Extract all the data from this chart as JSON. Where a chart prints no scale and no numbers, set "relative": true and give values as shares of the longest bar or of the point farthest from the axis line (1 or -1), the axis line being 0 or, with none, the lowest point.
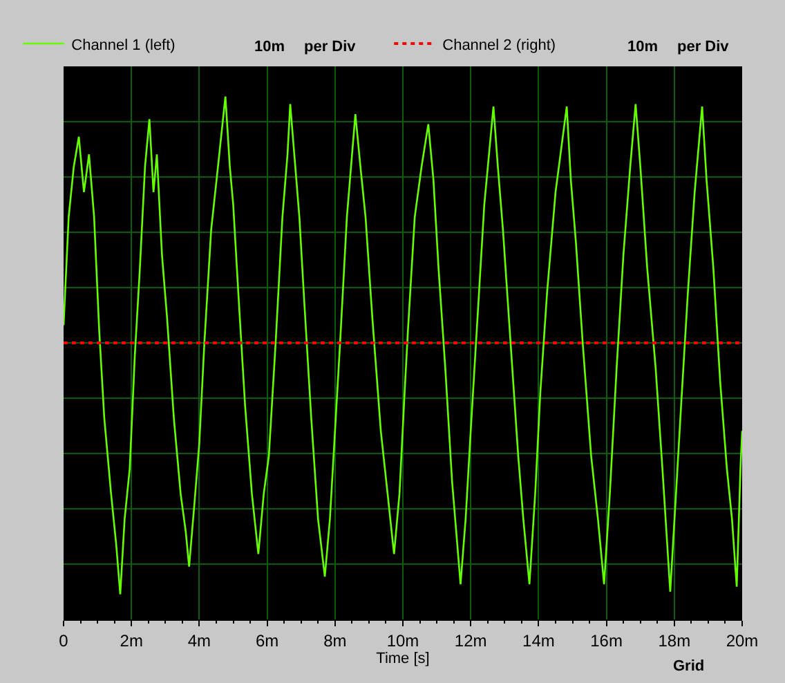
{
  "chart_data": {
    "type": "line",
    "relative": true,
    "xlabel": "Time [s]",
    "xlim": [
      0,
      20
    ],
    "xticks": [
      {
        "value": 0,
        "label": "0"
      },
      {
        "value": 2,
        "label": "2m"
      },
      {
        "value": 4,
        "label": "4m"
      },
      {
        "value": 6,
        "label": "6m"
      },
      {
        "value": 8,
        "label": "8m"
      },
      {
        "value": 10,
        "label": "10m"
      },
      {
        "value": 12,
        "label": "12m"
      },
      {
        "value": 14,
        "label": "14m"
      },
      {
        "value": 16,
        "label": "16m"
      },
      {
        "value": 18,
        "label": "18m"
      },
      {
        "value": 20,
        "label": "20m"
      }
    ],
    "grid": true,
    "legend": "top",
    "marker": "none",
    "annotations": [
      "10m",
      "per Div",
      "10m",
      "per Div",
      "Grid"
    ],
    "series": [
      {
        "name": "Channel 1 (left)",
        "color": "#66ff00",
        "line_style": "solid",
        "x": [
          0,
          0.15,
          0.3,
          0.45,
          0.6,
          0.75,
          0.9,
          1.05,
          1.2,
          1.4,
          1.55,
          1.67,
          1.8,
          1.95,
          2.1,
          2.25,
          2.4,
          2.53,
          2.65,
          2.75,
          2.9,
          3.05,
          3.25,
          3.45,
          3.6,
          3.7,
          3.85,
          4.0,
          4.15,
          4.35,
          4.55,
          4.77,
          4.9,
          5.0,
          5.15,
          5.35,
          5.55,
          5.74,
          5.9,
          6.05,
          6.25,
          6.45,
          6.6,
          6.68,
          6.8,
          6.95,
          7.1,
          7.3,
          7.5,
          7.7,
          7.85,
          8.0,
          8.15,
          8.35,
          8.6,
          8.75,
          8.9,
          9.1,
          9.35,
          9.55,
          9.74,
          9.9,
          10.05,
          10.15,
          10.35,
          10.55,
          10.75,
          10.9,
          11.05,
          11.25,
          11.45,
          11.7,
          11.85,
          12.0,
          12.2,
          12.4,
          12.67,
          12.8,
          12.95,
          13.15,
          13.4,
          13.55,
          13.73,
          13.9,
          14.05,
          14.25,
          14.5,
          14.83,
          14.95,
          15.1,
          15.3,
          15.55,
          15.75,
          15.93,
          16.1,
          16.3,
          16.5,
          16.7,
          16.86,
          17.0,
          17.2,
          17.45,
          17.65,
          17.88,
          18.05,
          18.2,
          18.4,
          18.6,
          18.82,
          18.95,
          19.15,
          19.35,
          19.55,
          19.7,
          19.84,
          19.95,
          20
        ],
        "values": [
          0.07,
          0.5,
          0.7,
          0.82,
          0.6,
          0.75,
          0.5,
          0.05,
          -0.3,
          -0.6,
          -0.8,
          -1,
          -0.7,
          -0.5,
          -0.05,
          0.3,
          0.7,
          0.89,
          0.6,
          0.75,
          0.35,
          0.1,
          -0.3,
          -0.6,
          -0.75,
          -0.89,
          -0.65,
          -0.4,
          0.0,
          0.45,
          0.7,
          0.98,
          0.7,
          0.55,
          0.2,
          -0.25,
          -0.6,
          -0.84,
          -0.6,
          -0.45,
          0.0,
          0.5,
          0.75,
          0.95,
          0.75,
          0.5,
          0.15,
          -0.3,
          -0.7,
          -0.93,
          -0.7,
          -0.35,
          0.0,
          0.5,
          0.91,
          0.7,
          0.5,
          0.1,
          -0.35,
          -0.6,
          -0.84,
          -0.6,
          -0.2,
          0.05,
          0.5,
          0.7,
          0.87,
          0.65,
          0.3,
          -0.1,
          -0.55,
          -0.96,
          -0.7,
          -0.35,
          0.1,
          0.55,
          0.94,
          0.7,
          0.45,
          0.05,
          -0.45,
          -0.7,
          -0.96,
          -0.6,
          -0.2,
          0.2,
          0.6,
          0.94,
          0.65,
          0.4,
          0.0,
          -0.45,
          -0.7,
          -0.96,
          -0.6,
          -0.1,
          0.35,
          0.7,
          0.95,
          0.7,
          0.3,
          -0.1,
          -0.5,
          -0.99,
          -0.6,
          -0.25,
          0.2,
          0.6,
          0.94,
          0.65,
          0.3,
          -0.15,
          -0.5,
          -0.7,
          -0.97,
          -0.5,
          -0.35
        ]
      },
      {
        "name": "Channel 2 (right)",
        "color": "#ff0000",
        "line_style": "dotted",
        "x": [
          0,
          20
        ],
        "values": [
          0,
          0
        ]
      }
    ]
  }
}
